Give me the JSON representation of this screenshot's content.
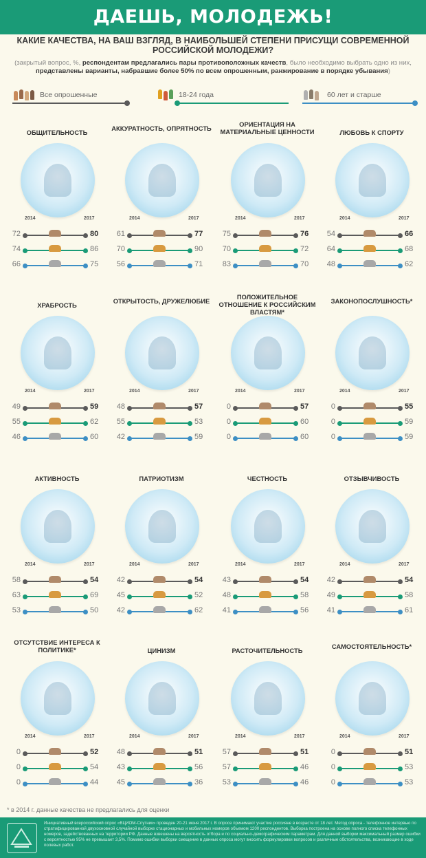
{
  "header": {
    "title": "ДАЕШЬ, МОЛОДЕЖЬ!"
  },
  "question": "КАКИЕ КАЧЕСТВА, НА ВАШ ВЗГЛЯД, В НАИБОЛЬШЕЙ СТЕПЕНИ ПРИСУЩИ СОВРЕМЕННОЙ РОССИЙСКОЙ МОЛОДЕЖИ?",
  "note": {
    "part1": "(закрытый вопрос, %, ",
    "part2": "респондентам предлагались пары противоположных качеств",
    "part3": ", было необходимо выбрать одно из них, ",
    "part4": "представлены варианты, набравшие более 50% по всем опрошенным, ранжирование в порядке убывания",
    "part5": ")"
  },
  "legend": [
    {
      "label": "Все опрошенные",
      "color": "#5a5a5a"
    },
    {
      "label": "18-24 года",
      "color": "#1a9b77"
    },
    {
      "label": "60 лет и старше",
      "color": "#3d8fc4"
    }
  ],
  "colors": {
    "all": "#5a5a5a",
    "young": "#1a9b77",
    "old": "#3d8fc4",
    "brand": "#1a9b77"
  },
  "chart_data": {
    "type": "dumbbell",
    "x": [
      "2014",
      "2017"
    ],
    "series": [
      {
        "name": "Все опрошенные"
      },
      {
        "name": "18-24 года"
      },
      {
        "name": "60 лет и старше"
      }
    ],
    "cards": [
      {
        "title": "ОБЩИТЕЛЬНОСТЬ",
        "icon": "speech-bubble-icon",
        "rows": [
          [
            72,
            80
          ],
          [
            74,
            86
          ],
          [
            66,
            75
          ]
        ]
      },
      {
        "title": "АККУРАТНОСТЬ, ОПРЯТНОСТЬ",
        "icon": "cleaning-supplies-icon",
        "rows": [
          [
            61,
            77
          ],
          [
            70,
            90
          ],
          [
            56,
            71
          ]
        ]
      },
      {
        "title": "ОРИЕНТАЦИЯ НА МАТЕРИАЛЬНЫЕ ЦЕННОСТИ",
        "icon": "money-icon",
        "rows": [
          [
            75,
            76
          ],
          [
            70,
            72
          ],
          [
            83,
            70
          ]
        ]
      },
      {
        "title": "ЛЮБОВЬ К СПОРТУ",
        "icon": "sport-ball-icon",
        "rows": [
          [
            54,
            66
          ],
          [
            64,
            68
          ],
          [
            48,
            62
          ]
        ]
      },
      {
        "title": "ХРАБРОСТЬ",
        "icon": "superhero-icon",
        "rows": [
          [
            49,
            59
          ],
          [
            55,
            62
          ],
          [
            46,
            60
          ]
        ]
      },
      {
        "title": "ОТКРЫТОСТЬ, ДРУЖЕЛЮБИЕ",
        "icon": "smiling-face-icon",
        "rows": [
          [
            48,
            57
          ],
          [
            55,
            53
          ],
          [
            42,
            59
          ]
        ]
      },
      {
        "title": "ПОЛОЖИТЕЛЬНОЕ ОТНОШЕНИЕ К РОССИЙСКИМ ВЛАСТЯМ*",
        "icon": "thumbs-up-icon",
        "rows": [
          [
            0,
            57
          ],
          [
            0,
            60
          ],
          [
            0,
            60
          ]
        ]
      },
      {
        "title": "ЗАКОНОПОСЛУШНОСТЬ*",
        "icon": "scales-icon",
        "rows": [
          [
            0,
            55
          ],
          [
            0,
            59
          ],
          [
            0,
            59
          ]
        ]
      },
      {
        "title": "АКТИВНОСТЬ",
        "icon": "backpack-student-icon",
        "rows": [
          [
            58,
            54
          ],
          [
            63,
            69
          ],
          [
            53,
            50
          ]
        ]
      },
      {
        "title": "ПАТРИОТИЗМ",
        "icon": "flag-couple-icon",
        "rows": [
          [
            42,
            54
          ],
          [
            45,
            52
          ],
          [
            42,
            62
          ]
        ]
      },
      {
        "title": "ЧЕСТНОСТЬ",
        "icon": "hand-on-heart-icon",
        "rows": [
          [
            43,
            54
          ],
          [
            48,
            58
          ],
          [
            41,
            56
          ]
        ]
      },
      {
        "title": "ОТЗЫВЧИВОСТЬ",
        "icon": "helping-hand-icon",
        "rows": [
          [
            42,
            54
          ],
          [
            49,
            58
          ],
          [
            41,
            61
          ]
        ]
      },
      {
        "title": "ОТСУТСТВИЕ ИНТЕРЕСА К ПОЛИТИКЕ*",
        "icon": "crossed-podium-icon",
        "rows": [
          [
            0,
            52
          ],
          [
            0,
            54
          ],
          [
            0,
            44
          ]
        ]
      },
      {
        "title": "ЦИНИЗМ",
        "icon": "smirking-face-icon",
        "rows": [
          [
            48,
            51
          ],
          [
            43,
            56
          ],
          [
            45,
            36
          ]
        ]
      },
      {
        "title": "РАСТОЧИТЕЛЬНОСТЬ",
        "icon": "shopping-bag-icon",
        "rows": [
          [
            57,
            51
          ],
          [
            57,
            46
          ],
          [
            53,
            46
          ]
        ]
      },
      {
        "title": "САМОСТОЯТЕЛЬНОСТЬ*",
        "icon": "multitasking-icon",
        "rows": [
          [
            0,
            51
          ],
          [
            0,
            53
          ],
          [
            0,
            53
          ]
        ]
      }
    ]
  },
  "footnote": "* в 2014 г. данные качества не предлагались для оценки",
  "footer": {
    "text": "Инициативный всероссийский опрос «ВЦИОМ-Спутник» проведен 20-21 июня 2017 г. В опросе принимают участие россияне в возрасте от 18 лет. Метод опроса - телефонное интервью по стратифицированной двухосновной случайной выборке стационарных и мобильных номеров объемом 1200 респондентов. Выборка построена на основе полного списка телефонных номеров, задействованных на территории РФ. Данные взвешены на вероятность отбора и по социально-демографическим параметрам. Для данной выборки максимальный размер ошибки с вероятностью 95% не превышает 3,5%. Помимо ошибки выборки смещение в данных опроса могут вносить формулировки вопросов и различные обстоятельства, возникающие в ходе полевых работ."
  }
}
